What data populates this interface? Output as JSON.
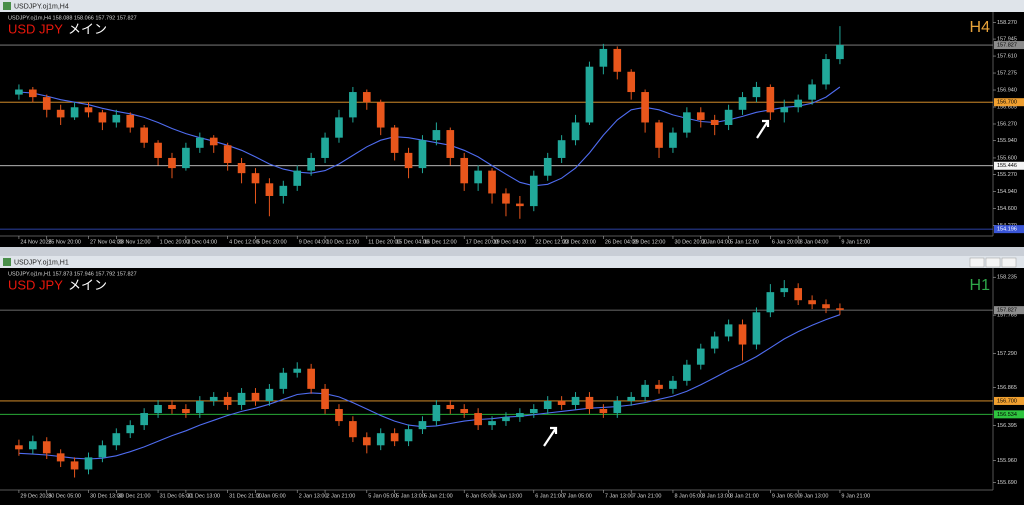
{
  "chart_data": [
    {
      "type": "candlestick",
      "window_title": "USDJPY.oj1m,H4",
      "info": "USDJPY.oj1m,H4  158.088 158.066 157.792 157.827",
      "title": "USD JPY",
      "title_color": "#e8170c",
      "subtitle": "メイン",
      "timeframe": "H4",
      "timeframe_color": "#e8a33a",
      "up_color": "#21a89a",
      "down_color": "#e8561c",
      "open": [
        156.85,
        156.95,
        156.8,
        156.55,
        156.4,
        156.6,
        156.5,
        156.3,
        156.45,
        156.2,
        155.9,
        155.6,
        155.4,
        155.8,
        156.0,
        155.85,
        155.5,
        155.3,
        155.1,
        154.85,
        155.05,
        155.35,
        155.6,
        156.0,
        156.4,
        156.9,
        156.7,
        156.2,
        155.7,
        155.4,
        155.95,
        156.15,
        155.6,
        155.1,
        155.35,
        154.9,
        154.7,
        154.65,
        155.25,
        155.6,
        155.95,
        156.3,
        157.4,
        157.75,
        157.3,
        156.9,
        156.3,
        155.8,
        156.1,
        156.5,
        156.35,
        156.25,
        156.55,
        156.8,
        157.0,
        156.5,
        156.6,
        156.75,
        157.05,
        157.55
      ],
      "high": [
        157.05,
        157.0,
        156.85,
        156.65,
        156.7,
        156.7,
        156.55,
        156.55,
        156.5,
        156.25,
        155.95,
        155.7,
        155.9,
        156.1,
        156.05,
        155.9,
        155.6,
        155.4,
        155.2,
        155.15,
        155.45,
        155.7,
        156.1,
        156.55,
        157.0,
        156.95,
        156.75,
        156.25,
        155.8,
        156.05,
        156.3,
        156.2,
        155.7,
        155.45,
        155.4,
        155.0,
        154.85,
        155.35,
        155.7,
        156.05,
        156.45,
        157.5,
        157.85,
        157.8,
        157.35,
        156.95,
        156.35,
        156.2,
        156.6,
        156.6,
        156.45,
        156.65,
        156.9,
        157.1,
        157.05,
        156.75,
        156.85,
        157.15,
        157.65,
        158.2
      ],
      "low": [
        156.75,
        156.7,
        156.4,
        156.25,
        156.35,
        156.4,
        156.15,
        156.2,
        156.1,
        155.8,
        155.45,
        155.2,
        155.35,
        155.7,
        155.7,
        155.35,
        155.1,
        154.7,
        154.45,
        154.7,
        154.95,
        155.25,
        155.5,
        155.9,
        156.3,
        156.55,
        156.05,
        155.55,
        155.2,
        155.3,
        155.85,
        155.45,
        154.95,
        154.95,
        154.7,
        154.45,
        154.4,
        154.55,
        155.15,
        155.5,
        155.85,
        156.25,
        157.25,
        157.15,
        156.75,
        156.1,
        155.6,
        155.7,
        156.0,
        156.2,
        156.05,
        156.15,
        156.45,
        156.7,
        156.35,
        156.3,
        156.5,
        156.65,
        156.95,
        157.45
      ],
      "close": [
        156.95,
        156.8,
        156.55,
        156.4,
        156.6,
        156.5,
        156.3,
        156.45,
        156.2,
        155.9,
        155.6,
        155.4,
        155.8,
        156.0,
        155.85,
        155.5,
        155.3,
        155.1,
        154.85,
        155.05,
        155.35,
        155.6,
        156.0,
        156.4,
        156.9,
        156.7,
        156.2,
        155.7,
        155.4,
        155.95,
        156.15,
        155.6,
        155.1,
        155.35,
        154.9,
        154.7,
        154.65,
        155.25,
        155.6,
        155.95,
        156.3,
        157.4,
        157.75,
        157.3,
        156.9,
        156.3,
        155.8,
        156.1,
        156.5,
        156.35,
        156.25,
        156.55,
        156.8,
        157.0,
        156.5,
        156.6,
        156.75,
        157.05,
        157.55,
        157.83
      ],
      "ma": {
        "color": "#4f6cf0",
        "values": [
          156.9,
          156.88,
          156.82,
          156.75,
          156.7,
          156.65,
          156.58,
          156.52,
          156.47,
          156.4,
          156.3,
          156.18,
          156.08,
          156.0,
          155.93,
          155.85,
          155.75,
          155.62,
          155.48,
          155.38,
          155.32,
          155.3,
          155.35,
          155.48,
          155.65,
          155.82,
          155.95,
          156.02,
          156.0,
          155.95,
          155.9,
          155.85,
          155.75,
          155.62,
          155.45,
          155.28,
          155.12,
          155.05,
          155.08,
          155.2,
          155.4,
          155.7,
          156.05,
          156.35,
          156.55,
          156.6,
          156.55,
          156.45,
          156.38,
          156.32,
          156.3,
          156.35,
          156.42,
          156.5,
          156.55,
          156.6,
          156.62,
          156.68,
          156.8,
          157.0
        ]
      },
      "hlines": [
        {
          "value": 157.827,
          "label": "157.827",
          "color": "#8c8c8c"
        },
        {
          "value": 156.7,
          "label": "156.700",
          "color": "#f0a030"
        },
        {
          "value": 155.446,
          "label": "155.446",
          "color": "#f4f4f4"
        },
        {
          "value": 154.196,
          "label": "154.196",
          "color": "#3a56d8"
        }
      ],
      "ylim": [
        154.1,
        158.4
      ],
      "yticks": [
        {
          "value": 158.27,
          "label": "158.270"
        },
        {
          "value": 157.945,
          "label": "157.945"
        },
        {
          "value": 157.61,
          "label": "157.610"
        },
        {
          "value": 157.275,
          "label": "157.275"
        },
        {
          "value": 156.94,
          "label": "156.940"
        },
        {
          "value": 156.605,
          "label": "156.605"
        },
        {
          "value": 156.27,
          "label": "156.270"
        },
        {
          "value": 155.94,
          "label": "155.940"
        },
        {
          "value": 155.6,
          "label": "155.600"
        },
        {
          "value": 155.27,
          "label": "155.270"
        },
        {
          "value": 154.94,
          "label": "154.940"
        },
        {
          "value": 154.6,
          "label": "154.600"
        },
        {
          "value": 154.27,
          "label": "154.270"
        }
      ],
      "xlim": [
        -1,
        70
      ],
      "xticks": [
        {
          "value": 0,
          "label": "24 Nov 2025"
        },
        {
          "value": 2,
          "label": "25 Nov 20:00"
        },
        {
          "value": 5,
          "label": "27 Nov 04:00"
        },
        {
          "value": 7,
          "label": "28 Nov 12:00"
        },
        {
          "value": 10,
          "label": "1 Dec 20:00"
        },
        {
          "value": 12,
          "label": "3 Dec 04:00"
        },
        {
          "value": 15,
          "label": "4 Dec 12:00"
        },
        {
          "value": 17,
          "label": "5 Dec 20:00"
        },
        {
          "value": 20,
          "label": "9 Dec 04:00"
        },
        {
          "value": 22,
          "label": "10 Dec 12:00"
        },
        {
          "value": 25,
          "label": "11 Dec 20:00"
        },
        {
          "value": 27,
          "label": "15 Dec 04:00"
        },
        {
          "value": 29,
          "label": "16 Dec 12:00"
        },
        {
          "value": 32,
          "label": "17 Dec 20:00"
        },
        {
          "value": 34,
          "label": "19 Dec 04:00"
        },
        {
          "value": 37,
          "label": "22 Dec 12:00"
        },
        {
          "value": 39,
          "label": "23 Dec 20:00"
        },
        {
          "value": 42,
          "label": "26 Dec 04:00"
        },
        {
          "value": 44,
          "label": "29 Dec 12:00"
        },
        {
          "value": 47,
          "label": "30 Dec 20:00"
        },
        {
          "value": 49,
          "label": "2 Jan 04:00"
        },
        {
          "value": 51,
          "label": "5 Jan 12:00"
        },
        {
          "value": 54,
          "label": "6 Jan 20:00"
        },
        {
          "value": 56,
          "label": "8 Jan 04:00"
        },
        {
          "value": 59,
          "label": "9 Jan 12:00"
        }
      ],
      "grid": false
    },
    {
      "type": "candlestick",
      "window_title": "USDJPY.oj1m,H1",
      "info": "USDJPY.oj1m,H1  157.873 157.946 157.792 157.827",
      "title": "USD JPY",
      "title_color": "#e8170c",
      "subtitle": "メイン",
      "timeframe": "H1",
      "timeframe_color": "#2fa84a",
      "up_color": "#21a89a",
      "down_color": "#e8561c",
      "open": [
        156.15,
        156.1,
        156.2,
        156.05,
        155.95,
        155.85,
        156.0,
        156.15,
        156.3,
        156.4,
        156.55,
        156.65,
        156.6,
        156.55,
        156.7,
        156.75,
        156.65,
        156.8,
        156.7,
        156.85,
        157.05,
        157.1,
        156.85,
        156.6,
        156.45,
        156.25,
        156.15,
        156.3,
        156.2,
        156.35,
        156.45,
        156.65,
        156.6,
        156.55,
        156.4,
        156.45,
        156.5,
        156.55,
        156.6,
        156.7,
        156.65,
        156.75,
        156.6,
        156.55,
        156.7,
        156.75,
        156.9,
        156.85,
        156.95,
        157.15,
        157.35,
        157.5,
        157.65,
        157.4,
        157.8,
        158.05,
        158.1,
        157.95,
        157.9,
        157.85
      ],
      "high": [
        156.22,
        156.27,
        156.25,
        156.1,
        156.0,
        156.06,
        156.21,
        156.36,
        156.46,
        156.61,
        156.71,
        156.71,
        156.66,
        156.76,
        156.81,
        156.81,
        156.86,
        156.86,
        156.91,
        157.11,
        157.18,
        157.16,
        156.91,
        156.66,
        156.51,
        156.31,
        156.36,
        156.36,
        156.41,
        156.51,
        156.71,
        156.71,
        156.66,
        156.61,
        156.51,
        156.56,
        156.61,
        156.66,
        156.76,
        156.76,
        156.81,
        156.81,
        156.66,
        156.76,
        156.81,
        156.96,
        156.96,
        157.01,
        157.21,
        157.41,
        157.56,
        157.71,
        157.71,
        157.86,
        158.15,
        158.2,
        158.16,
        158.01,
        157.96,
        157.91
      ],
      "low": [
        156.02,
        156.04,
        155.98,
        155.88,
        155.75,
        155.79,
        155.94,
        156.09,
        156.24,
        156.34,
        156.49,
        156.54,
        156.49,
        156.49,
        156.64,
        156.59,
        156.59,
        156.64,
        156.64,
        156.79,
        156.99,
        156.79,
        156.54,
        156.39,
        156.19,
        156.05,
        156.09,
        156.14,
        156.14,
        156.29,
        156.39,
        156.54,
        156.49,
        156.34,
        156.34,
        156.39,
        156.44,
        156.49,
        156.54,
        156.59,
        156.59,
        156.54,
        156.49,
        156.49,
        156.64,
        156.69,
        156.79,
        156.79,
        156.89,
        157.09,
        157.29,
        157.44,
        157.2,
        157.34,
        157.74,
        157.99,
        157.89,
        157.84,
        157.79,
        157.77
      ],
      "close": [
        156.1,
        156.2,
        156.05,
        155.95,
        155.85,
        156.0,
        156.15,
        156.3,
        156.4,
        156.55,
        156.65,
        156.6,
        156.55,
        156.7,
        156.75,
        156.65,
        156.8,
        156.7,
        156.85,
        157.05,
        157.1,
        156.85,
        156.6,
        156.45,
        156.25,
        156.15,
        156.3,
        156.2,
        156.35,
        156.45,
        156.65,
        156.6,
        156.55,
        156.4,
        156.45,
        156.5,
        156.55,
        156.6,
        156.7,
        156.65,
        156.75,
        156.6,
        156.55,
        156.7,
        156.75,
        156.9,
        156.85,
        156.95,
        157.15,
        157.35,
        157.5,
        157.65,
        157.4,
        157.8,
        158.05,
        158.1,
        157.95,
        157.9,
        157.85,
        157.83
      ],
      "ma": {
        "color": "#4f6cf0",
        "values": [
          156.05,
          156.04,
          156.03,
          156.01,
          155.99,
          155.98,
          155.99,
          156.02,
          156.07,
          156.13,
          156.2,
          156.27,
          156.33,
          156.4,
          156.46,
          156.52,
          156.57,
          156.61,
          156.66,
          156.72,
          156.78,
          156.8,
          156.79,
          156.75,
          156.68,
          156.6,
          156.52,
          156.45,
          156.4,
          156.38,
          156.39,
          156.42,
          156.45,
          156.47,
          156.48,
          156.5,
          156.51,
          156.53,
          156.55,
          156.57,
          156.59,
          156.61,
          156.62,
          156.63,
          156.65,
          156.68,
          156.72,
          156.76,
          156.82,
          156.9,
          156.99,
          157.08,
          157.16,
          157.25,
          157.36,
          157.47,
          157.56,
          157.64,
          157.71,
          157.77
        ]
      },
      "hlines": [
        {
          "value": 157.827,
          "label": "157.827",
          "color": "#8c8c8c"
        },
        {
          "value": 156.7,
          "label": "156.700",
          "color": "#f0a030"
        },
        {
          "value": 156.534,
          "label": "156.534",
          "color": "#2fc43f"
        }
      ],
      "ylim": [
        155.62,
        158.3
      ],
      "yticks": [
        {
          "value": 158.235,
          "label": "158.235"
        },
        {
          "value": 157.765,
          "label": "157.765"
        },
        {
          "value": 157.29,
          "label": "157.290"
        },
        {
          "value": 156.865,
          "label": "156.865"
        },
        {
          "value": 156.395,
          "label": "156.395"
        },
        {
          "value": 155.96,
          "label": "155.960"
        },
        {
          "value": 155.69,
          "label": "155.690"
        }
      ],
      "xlim": [
        -1,
        70
      ],
      "xticks": [
        {
          "value": 0,
          "label": "29 Dec 2025"
        },
        {
          "value": 2,
          "label": "30 Dec 05:00"
        },
        {
          "value": 5,
          "label": "30 Dec 13:00"
        },
        {
          "value": 7,
          "label": "30 Dec 21:00"
        },
        {
          "value": 10,
          "label": "31 Dec 05:00"
        },
        {
          "value": 12,
          "label": "31 Dec 13:00"
        },
        {
          "value": 15,
          "label": "31 Dec 21:00"
        },
        {
          "value": 17,
          "label": "2 Jan 05:00"
        },
        {
          "value": 20,
          "label": "2 Jan 13:00"
        },
        {
          "value": 22,
          "label": "2 Jan 21:00"
        },
        {
          "value": 25,
          "label": "5 Jan 05:00"
        },
        {
          "value": 27,
          "label": "5 Jan 13:00"
        },
        {
          "value": 29,
          "label": "5 Jan 21:00"
        },
        {
          "value": 32,
          "label": "6 Jan 05:00"
        },
        {
          "value": 34,
          "label": "6 Jan 13:00"
        },
        {
          "value": 37,
          "label": "6 Jan 21:00"
        },
        {
          "value": 39,
          "label": "7 Jan 05:00"
        },
        {
          "value": 42,
          "label": "7 Jan 13:00"
        },
        {
          "value": 44,
          "label": "7 Jan 21:00"
        },
        {
          "value": 47,
          "label": "8 Jan 05:00"
        },
        {
          "value": 49,
          "label": "8 Jan 13:00"
        },
        {
          "value": 51,
          "label": "8 Jan 21:00"
        },
        {
          "value": 54,
          "label": "9 Jan 05:00"
        },
        {
          "value": 56,
          "label": "9 Jan 13:00"
        },
        {
          "value": 59,
          "label": "9 Jan 21:00"
        }
      ],
      "grid": false
    }
  ]
}
